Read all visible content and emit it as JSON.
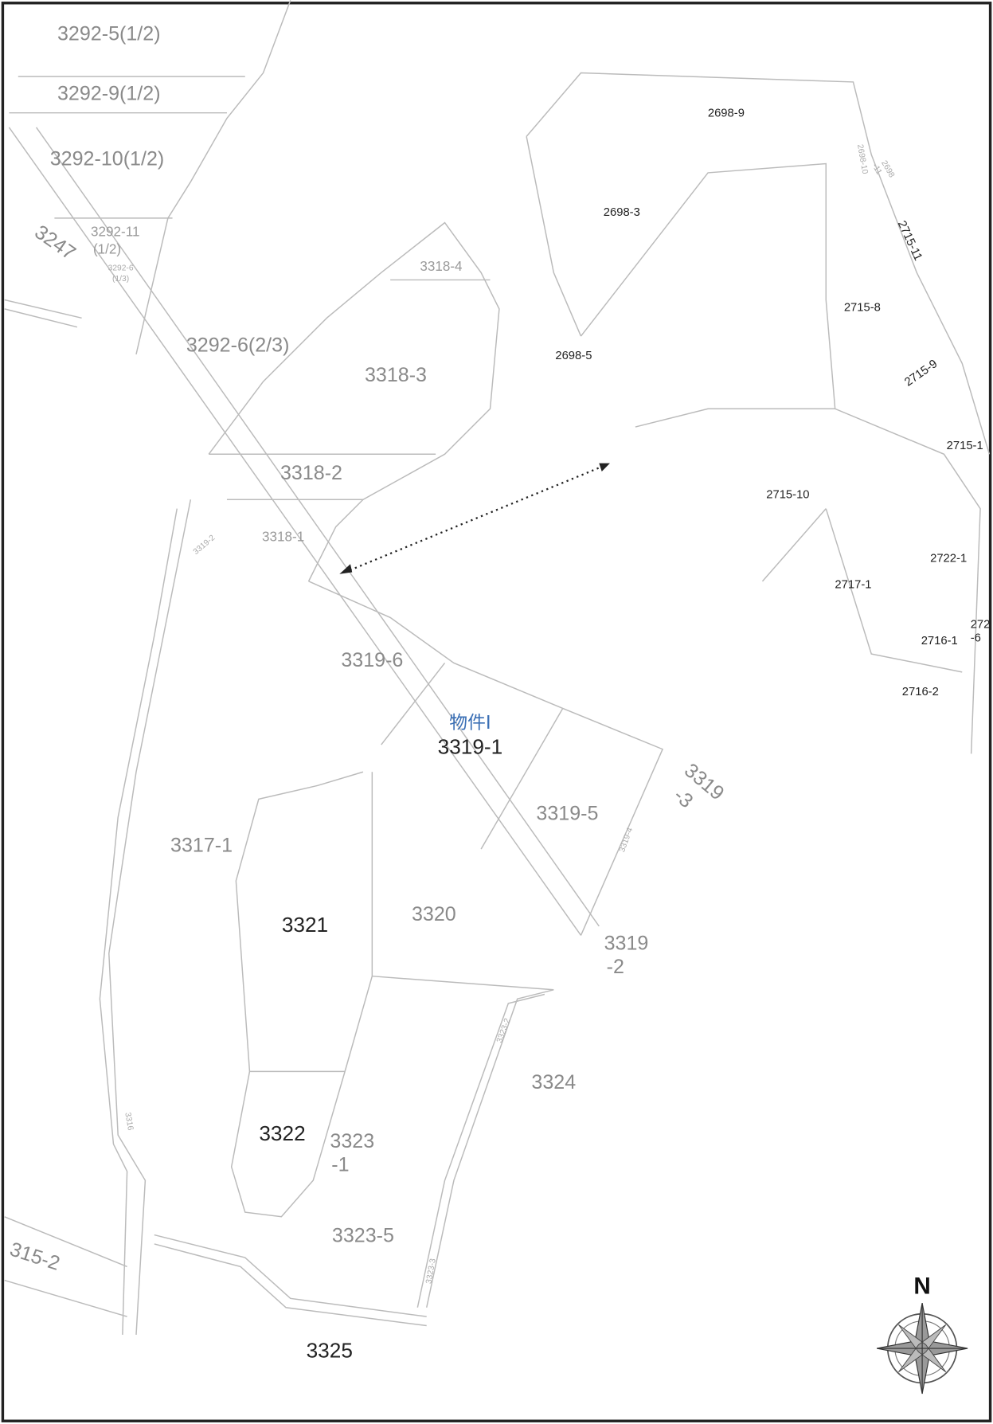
{
  "labels": [
    "3292-5(1/2)",
    "3292-9(1/2)",
    "3292-10(1/2)",
    "3247",
    "3292-11",
    "(1/2)",
    "3292-6",
    "(1/3)",
    "3292-6(2/3)",
    "3318-4",
    "3318-3",
    "3318-2",
    "3318-1",
    "3319-6",
    "3319-5",
    "3319",
    "-3",
    "3317-1",
    "3321",
    "3320",
    "3319",
    "-2",
    "3324",
    "3322",
    "3323",
    "-1",
    "3323-5",
    "3325",
    "315-2",
    "3316",
    "3319-4",
    "3323-2",
    "3323-3",
    "3319-2",
    "2698-9",
    "2698-3",
    "2698-5",
    "2715-8",
    "2715-11",
    "2698-10",
    "2698",
    "-11",
    "2715-9",
    "2715-1",
    "2715-10",
    "2722-1",
    "2717-1",
    "2716-1",
    "272",
    "-6",
    "2716-2"
  ],
  "property": {
    "tag": "物件Ⅰ",
    "parcel": "3319-1"
  },
  "compass": "N"
}
